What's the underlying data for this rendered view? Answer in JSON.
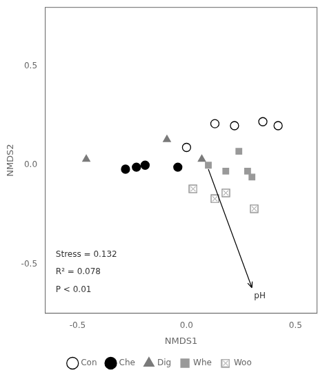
{
  "chart_data": {
    "type": "scatter",
    "xlabel": "NMDS1",
    "ylabel": "NMDS2",
    "xlim": [
      -0.65,
      0.6
    ],
    "ylim": [
      -0.75,
      0.8
    ],
    "xticks": [
      -0.5,
      {
        "value": 0,
        "label": "0.0"
      },
      0.5
    ],
    "yticks": [
      -0.5,
      {
        "value": 0,
        "label": "0.0"
      },
      0.5
    ],
    "grid": false,
    "legend": "bottom",
    "series": [
      {
        "name": "Con",
        "marker": "circle_open",
        "color": "black",
        "x": [
          0.0,
          0.13,
          0.22,
          0.35,
          0.42
        ],
        "y": [
          0.09,
          0.21,
          0.2,
          0.22,
          0.2
        ]
      },
      {
        "name": "Che",
        "marker": "circle",
        "color": "black",
        "x": [
          -0.28,
          -0.23,
          -0.19,
          -0.04
        ],
        "y": [
          -0.02,
          -0.01,
          0.0,
          -0.01
        ]
      },
      {
        "name": "Dig",
        "marker": "triangle",
        "color": "#7a7a7a",
        "x": [
          -0.46,
          -0.09,
          0.07
        ],
        "y": [
          0.03,
          0.13,
          0.03
        ]
      },
      {
        "name": "Whe",
        "marker": "square",
        "color": "#999999",
        "x": [
          0.1,
          0.18,
          0.24,
          0.28,
          0.3
        ],
        "y": [
          0.0,
          -0.03,
          0.07,
          -0.03,
          -0.06
        ]
      },
      {
        "name": "Woo",
        "marker": "crossed_square",
        "color": "#888888",
        "x": [
          0.03,
          0.13,
          0.18,
          0.31
        ],
        "y": [
          -0.12,
          -0.17,
          -0.14,
          -0.22
        ]
      }
    ],
    "annotations": [
      {
        "type": "arrow",
        "x": 0.1,
        "y": -0.02,
        "x_end": 0.3,
        "y_end": -0.62
      },
      {
        "text": "pH",
        "x": 0.31,
        "y": -0.64
      },
      {
        "text": "Stress = 0.132",
        "x": -0.6,
        "y": -0.43
      },
      {
        "text": "R² = 0.078",
        "x": -0.6,
        "y": -0.52
      },
      {
        "text": "P < 0.01",
        "x": -0.6,
        "y": -0.61
      }
    ]
  }
}
